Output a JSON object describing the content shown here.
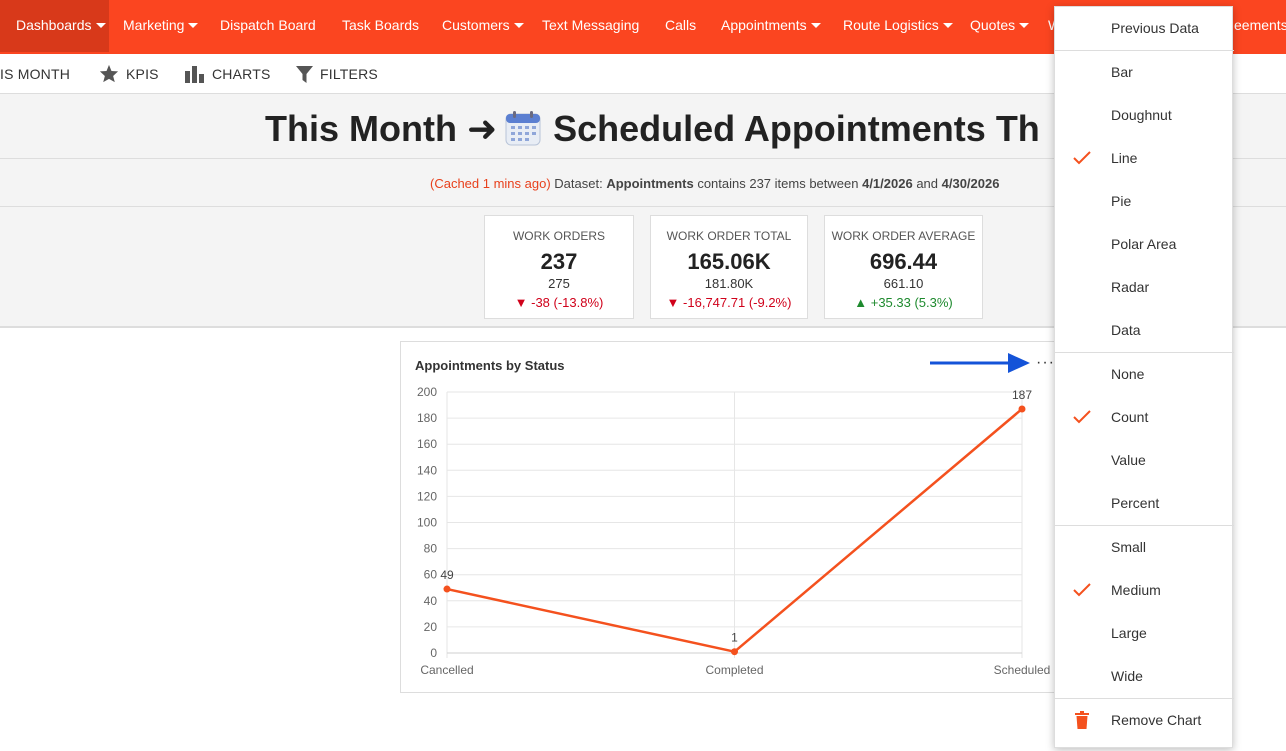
{
  "nav": {
    "items": [
      {
        "label": "Dashboards",
        "caret": true,
        "active": true
      },
      {
        "label": "Marketing",
        "caret": true
      },
      {
        "label": "Dispatch Board",
        "caret": false
      },
      {
        "label": "Task Boards",
        "caret": false
      },
      {
        "label": "Customers",
        "caret": true
      },
      {
        "label": "Text Messaging",
        "caret": false
      },
      {
        "label": "Calls",
        "caret": false
      },
      {
        "label": "Appointments",
        "caret": true
      },
      {
        "label": "Route Logistics",
        "caret": true
      },
      {
        "label": "Quotes",
        "caret": true
      },
      {
        "label": "W",
        "caret": false
      },
      {
        "label": "eements",
        "caret": false
      }
    ]
  },
  "toolbar": {
    "period_label": "IS MONTH",
    "kpis_label": "KPIS",
    "charts_label": "CHARTS",
    "filters_label": "FILTERS"
  },
  "title": {
    "prefix": "This Month ➜",
    "suffix": "Scheduled Appointments Th"
  },
  "dataset": {
    "cached": "(Cached 1 mins ago)",
    "text1": " Dataset: ",
    "name": "Appointments",
    "text2": " contains 237 items between ",
    "start": "4/1/2026",
    "text3": " and ",
    "end": "4/30/2026"
  },
  "kpis": [
    {
      "label": "WORK ORDERS",
      "value": "237",
      "previous": "275",
      "delta": "-38 (-13.8%)",
      "direction": "down"
    },
    {
      "label": "WORK ORDER TOTAL",
      "value": "165.06K",
      "previous": "181.80K",
      "delta": "-16,747.71 (-9.2%)",
      "direction": "down"
    },
    {
      "label": "WORK ORDER AVERAGE",
      "value": "696.44",
      "previous": "661.10",
      "delta": "+35.33 (5.3%)",
      "direction": "up"
    }
  ],
  "chart_card": {
    "title": "Appointments by Status",
    "menu_button": "···"
  },
  "chart_data": {
    "type": "line",
    "title": "Appointments by Status",
    "categories": [
      "Cancelled",
      "Completed",
      "Scheduled"
    ],
    "series": [
      {
        "values": [
          49,
          1,
          187
        ]
      }
    ],
    "data_labels": [
      "49",
      "1",
      "187"
    ],
    "ylim": [
      0,
      200
    ],
    "yticks": [
      0,
      20,
      40,
      60,
      80,
      100,
      120,
      140,
      160,
      180,
      200
    ],
    "grid": true,
    "colors": {
      "line": "#f4511e",
      "grid": "#e6e6e6",
      "tick": "#666666"
    }
  },
  "menu": {
    "items": [
      {
        "label": "Previous Data",
        "checked": false
      },
      {
        "label": "Bar",
        "checked": false
      },
      {
        "label": "Doughnut",
        "checked": false
      },
      {
        "label": "Line",
        "checked": true
      },
      {
        "label": "Pie",
        "checked": false
      },
      {
        "label": "Polar Area",
        "checked": false
      },
      {
        "label": "Radar",
        "checked": false
      },
      {
        "label": "Data",
        "checked": false
      },
      {
        "label": "None",
        "checked": false
      },
      {
        "label": "Count",
        "checked": true
      },
      {
        "label": "Value",
        "checked": false
      },
      {
        "label": "Percent",
        "checked": false
      },
      {
        "label": "Small",
        "checked": false
      },
      {
        "label": "Medium",
        "checked": true
      },
      {
        "label": "Large",
        "checked": false
      },
      {
        "label": "Wide",
        "checked": false
      },
      {
        "label": "Remove Chart",
        "checked": false,
        "icon": "trash-icon"
      }
    ]
  },
  "colors": {
    "brand": "#fb4520",
    "brand_active": "#d8391a",
    "check": "#f4511e",
    "arrow": "#1453d8"
  }
}
